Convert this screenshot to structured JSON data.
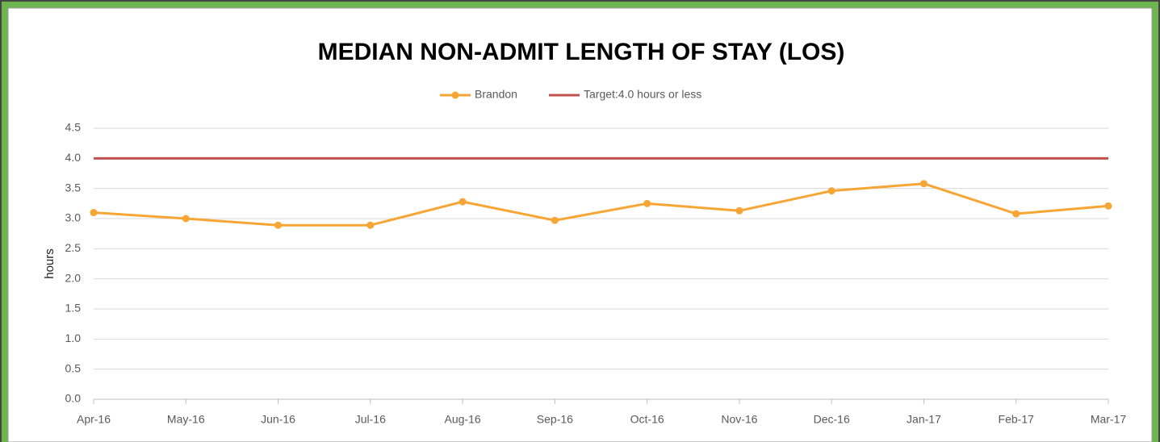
{
  "chart_data": {
    "type": "line",
    "title": "MEDIAN NON-ADMIT LENGTH OF STAY (LOS)",
    "y_label": "hours",
    "categories": [
      "Apr-16",
      "May-16",
      "Jun-16",
      "Jul-16",
      "Aug-16",
      "Sep-16",
      "Oct-16",
      "Nov-16",
      "Dec-16",
      "Jan-17",
      "Feb-17",
      "Mar-17"
    ],
    "series": [
      {
        "name": "Brandon",
        "color": "#f7a535",
        "markers": true,
        "values": [
          3.1,
          3.0,
          2.89,
          2.89,
          3.28,
          2.97,
          3.25,
          3.13,
          3.46,
          3.58,
          3.08,
          3.21
        ]
      },
      {
        "name": "Target:4.0 hours or less",
        "color": "#c0504d",
        "markers": false,
        "values": [
          4,
          4,
          4,
          4,
          4,
          4,
          4,
          4,
          4,
          4,
          4,
          4
        ]
      }
    ],
    "ylim": [
      0,
      4.5
    ],
    "yticks": [
      {
        "value": 0,
        "label": "0.0"
      },
      0.5,
      {
        "value": 1,
        "label": "1.0"
      },
      1.5,
      {
        "value": 2,
        "label": "2.0"
      },
      2.5,
      {
        "value": 3,
        "label": "3.0"
      },
      3.5,
      {
        "value": 4,
        "label": "4.0"
      },
      4.5
    ],
    "grid": true,
    "legend": "top"
  }
}
